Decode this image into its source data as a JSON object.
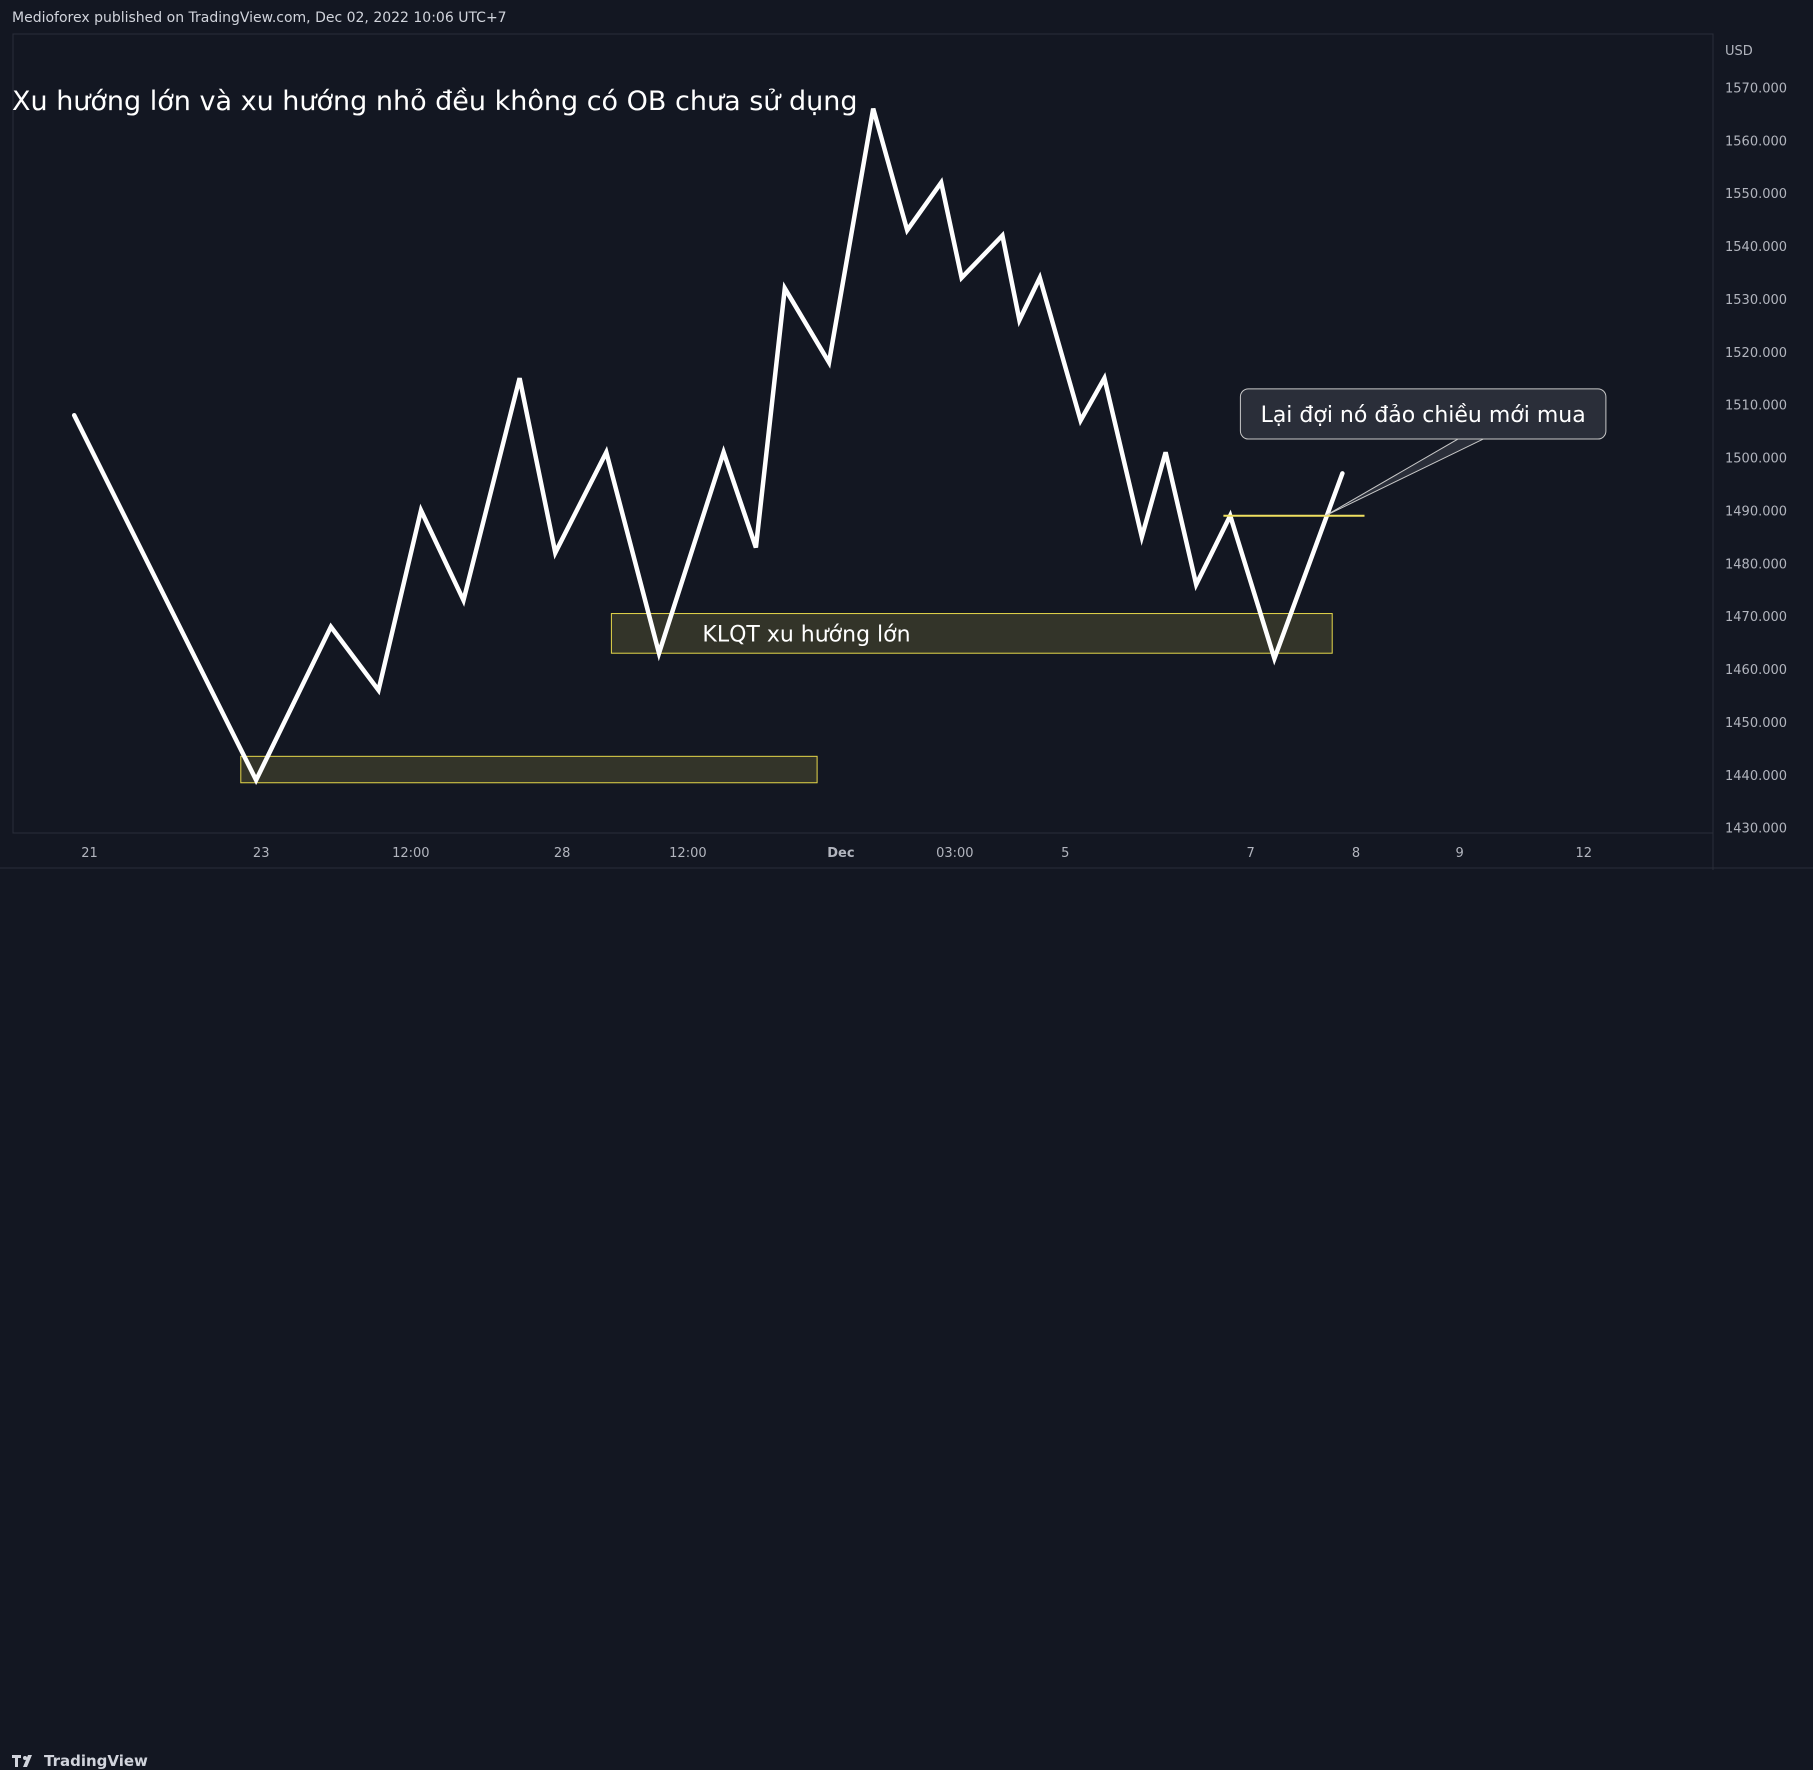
{
  "header": {
    "publisher": "Medioforex published on TradingView.com, Dec 02, 2022 10:06 UTC+7"
  },
  "footer": {
    "brand": "TradingView"
  },
  "colors": {
    "background": "#131722",
    "line": "#ffffff",
    "grid": "#2a2e39",
    "zone_fill": "#3a3a2a",
    "zone_border": "#e6d84a",
    "level_line": "#f0e060",
    "label_bg": "#2a2e39",
    "label_border": "#c8c8c8"
  },
  "chart_data": {
    "type": "line",
    "title": "Xu hướng lớn và xu hướng nhỏ đều không có OB chưa sử dụng",
    "currency": "USD",
    "ylim": [
      1430,
      1580
    ],
    "y_ticks": [
      1430,
      1440,
      1450,
      1460,
      1470,
      1480,
      1490,
      1500,
      1510,
      1520,
      1530,
      1540,
      1550,
      1560,
      1570
    ],
    "y_tick_labels": [
      "1430.000",
      "1440.000",
      "1450.000",
      "1460.000",
      "1470.000",
      "1480.000",
      "1490.000",
      "1500.000",
      "1510.000",
      "1520.000",
      "1530.000",
      "1540.000",
      "1550.000",
      "1560.000",
      "1570.000"
    ],
    "x_ticks": [
      {
        "label": "21",
        "t": 0.045,
        "bold": false
      },
      {
        "label": "23",
        "t": 0.146,
        "bold": false
      },
      {
        "label": "12:00",
        "t": 0.234,
        "bold": false
      },
      {
        "label": "28",
        "t": 0.323,
        "bold": false
      },
      {
        "label": "12:00",
        "t": 0.397,
        "bold": false
      },
      {
        "label": "Dec",
        "t": 0.487,
        "bold": true
      },
      {
        "label": "03:00",
        "t": 0.554,
        "bold": false
      },
      {
        "label": "5",
        "t": 0.619,
        "bold": false
      },
      {
        "label": "7",
        "t": 0.728,
        "bold": false
      },
      {
        "label": "8",
        "t": 0.79,
        "bold": false
      },
      {
        "label": "9",
        "t": 0.851,
        "bold": false
      },
      {
        "label": "12",
        "t": 0.924,
        "bold": false
      }
    ],
    "series": [
      {
        "points": [
          {
            "t": 0.036,
            "y": 1508
          },
          {
            "t": 0.143,
            "y": 1439
          },
          {
            "t": 0.187,
            "y": 1468
          },
          {
            "t": 0.215,
            "y": 1456
          },
          {
            "t": 0.24,
            "y": 1490
          },
          {
            "t": 0.265,
            "y": 1473
          },
          {
            "t": 0.298,
            "y": 1515
          },
          {
            "t": 0.319,
            "y": 1482
          },
          {
            "t": 0.349,
            "y": 1501
          },
          {
            "t": 0.38,
            "y": 1463
          },
          {
            "t": 0.418,
            "y": 1501
          },
          {
            "t": 0.437,
            "y": 1483
          },
          {
            "t": 0.454,
            "y": 1532
          },
          {
            "t": 0.48,
            "y": 1518
          },
          {
            "t": 0.506,
            "y": 1566
          },
          {
            "t": 0.526,
            "y": 1543
          },
          {
            "t": 0.546,
            "y": 1552
          },
          {
            "t": 0.558,
            "y": 1534
          },
          {
            "t": 0.582,
            "y": 1542
          },
          {
            "t": 0.592,
            "y": 1526
          },
          {
            "t": 0.604,
            "y": 1534
          },
          {
            "t": 0.628,
            "y": 1507
          },
          {
            "t": 0.642,
            "y": 1515
          },
          {
            "t": 0.664,
            "y": 1485
          },
          {
            "t": 0.678,
            "y": 1501
          },
          {
            "t": 0.696,
            "y": 1476
          },
          {
            "t": 0.716,
            "y": 1489
          },
          {
            "t": 0.742,
            "y": 1462
          },
          {
            "t": 0.782,
            "y": 1497
          }
        ]
      }
    ],
    "zones": [
      {
        "t0": 0.134,
        "t1": 0.473,
        "y0": 1438.5,
        "y1": 1443.5
      },
      {
        "t0": 0.352,
        "t1": 0.776,
        "y0": 1463,
        "y1": 1470.5,
        "label": "KLQT xu hướng lớn"
      }
    ],
    "level_line": {
      "t0": 0.712,
      "t1": 0.795,
      "y": 1489
    },
    "callout": {
      "text": "Lại đợi nó đảo chiều mới mua",
      "anchor_t": 0.772,
      "anchor_y": 1489,
      "box_t0": 0.722,
      "box_t1": 0.937,
      "box_y_top": 1513,
      "box_y_bottom": 1503.5
    }
  }
}
